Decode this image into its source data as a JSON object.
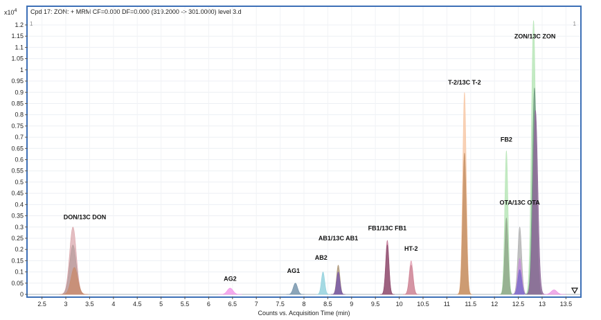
{
  "chart_data": {
    "type": "area",
    "title": "Cpd 17: ZON: + MRM CF=0.000 DF=0.000 (319.2000 -> 301.0000) level 3.d",
    "y_multiplier_label": "x10",
    "y_multiplier_exponent": "4",
    "xlabel": "Counts vs. Acquisition Time (min)",
    "ylabel": "",
    "xlim": [
      2.2,
      13.8
    ],
    "ylim": [
      0,
      1.2
    ],
    "x_ticks": [
      "2.5",
      "3",
      "3.5",
      "4",
      "4.5",
      "5",
      "5.5",
      "6",
      "6.5",
      "7",
      "7.5",
      "8",
      "8.5",
      "9",
      "9.5",
      "10",
      "10.5",
      "11",
      "11.5",
      "12",
      "12.5",
      "13",
      "13.5"
    ],
    "y_ticks": [
      "0",
      "0.05",
      "0.1",
      "0.15",
      "0.2",
      "0.25",
      "0.3",
      "0.35",
      "0.4",
      "0.45",
      "0.5",
      "0.55",
      "0.6",
      "0.65",
      "0.7",
      "0.75",
      "0.8",
      "0.85",
      "0.9",
      "0.95",
      "1",
      "1.05",
      "1.1",
      "1.15",
      "1.2"
    ],
    "corner_markers": [
      "1",
      "1"
    ],
    "grid": true,
    "peaks": [
      {
        "center": 3.15,
        "height": 0.3,
        "width": 0.07,
        "color": "#d9a3a8",
        "opacity": 0.7
      },
      {
        "center": 3.15,
        "height": 0.22,
        "width": 0.07,
        "color": "#b59a9a",
        "opacity": 0.7
      },
      {
        "center": 3.18,
        "height": 0.12,
        "width": 0.07,
        "color": "#c98a6a",
        "opacity": 0.75
      },
      {
        "center": 6.45,
        "height": 0.028,
        "width": 0.06,
        "color": "#f08fe8",
        "opacity": 0.75
      },
      {
        "center": 7.82,
        "height": 0.05,
        "width": 0.045,
        "color": "#6e8fa8",
        "opacity": 0.8
      },
      {
        "center": 8.4,
        "height": 0.1,
        "width": 0.035,
        "color": "#8fd0dc",
        "opacity": 0.8
      },
      {
        "center": 8.72,
        "height": 0.13,
        "width": 0.035,
        "color": "#a7906f",
        "opacity": 0.75
      },
      {
        "center": 8.72,
        "height": 0.1,
        "width": 0.035,
        "color": "#7a5aa8",
        "opacity": 0.85
      },
      {
        "center": 9.75,
        "height": 0.24,
        "width": 0.035,
        "color": "#c07090",
        "opacity": 0.8
      },
      {
        "center": 9.75,
        "height": 0.22,
        "width": 0.035,
        "color": "#8a5070",
        "opacity": 0.7
      },
      {
        "center": 10.25,
        "height": 0.15,
        "width": 0.04,
        "color": "#e4a3b5",
        "opacity": 0.8
      },
      {
        "center": 10.25,
        "height": 0.13,
        "width": 0.04,
        "color": "#c88090",
        "opacity": 0.6
      },
      {
        "center": 11.37,
        "height": 0.9,
        "width": 0.038,
        "color": "#f7c9a8",
        "opacity": 0.85
      },
      {
        "center": 11.37,
        "height": 0.63,
        "width": 0.038,
        "color": "#c8956a",
        "opacity": 0.9
      },
      {
        "center": 12.25,
        "height": 0.64,
        "width": 0.035,
        "color": "#b8e6b8",
        "opacity": 0.85
      },
      {
        "center": 12.25,
        "height": 0.34,
        "width": 0.035,
        "color": "#8fa88a",
        "opacity": 0.85
      },
      {
        "center": 12.53,
        "height": 0.3,
        "width": 0.04,
        "color": "#b0b0b0",
        "opacity": 0.8
      },
      {
        "center": 12.53,
        "height": 0.16,
        "width": 0.04,
        "color": "#c490d8",
        "opacity": 0.8
      },
      {
        "center": 12.53,
        "height": 0.11,
        "width": 0.04,
        "color": "#7a6ac8",
        "opacity": 0.8
      },
      {
        "center": 12.82,
        "height": 1.22,
        "width": 0.045,
        "color": "#b8e6b8",
        "opacity": 0.85
      },
      {
        "center": 12.84,
        "height": 0.92,
        "width": 0.045,
        "color": "#6f9a80",
        "opacity": 0.85
      },
      {
        "center": 12.86,
        "height": 0.82,
        "width": 0.05,
        "color": "#8f6a9a",
        "opacity": 0.85
      },
      {
        "center": 13.25,
        "height": 0.02,
        "width": 0.06,
        "color": "#e88adf",
        "opacity": 0.7
      }
    ],
    "annotations": [
      {
        "text": "DON/13C DON",
        "x": 3.4,
        "y": 0.335
      },
      {
        "text": "AG2",
        "x": 6.45,
        "y": 0.06
      },
      {
        "text": "AG1",
        "x": 7.78,
        "y": 0.095
      },
      {
        "text": "AB2",
        "x": 8.36,
        "y": 0.155
      },
      {
        "text": "AB1/13C AB1",
        "x": 8.72,
        "y": 0.24
      },
      {
        "text": "FB1/13C FB1",
        "x": 9.75,
        "y": 0.285
      },
      {
        "text": "HT-2",
        "x": 10.25,
        "y": 0.195
      },
      {
        "text": "T-2/13C T-2",
        "x": 11.37,
        "y": 0.935
      },
      {
        "text": "FB2",
        "x": 12.25,
        "y": 0.68
      },
      {
        "text": "OTA/13C OTA",
        "x": 12.53,
        "y": 0.4
      },
      {
        "text": "ZON/13C ZON",
        "x": 12.85,
        "y": 1.14
      }
    ]
  }
}
